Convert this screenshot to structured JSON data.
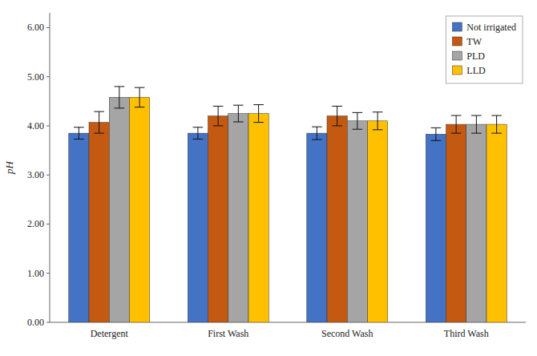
{
  "chart_data": {
    "type": "bar",
    "categories": [
      "Detergent",
      "First Wash",
      "Second Wash",
      "Third Wash"
    ],
    "ylabel": "pH",
    "series": [
      {
        "name": "Not irrigated",
        "color": "#4472C4",
        "values": [
          3.85,
          3.85,
          3.85,
          3.83
        ],
        "errors": [
          0.12,
          0.12,
          0.13,
          0.13
        ]
      },
      {
        "name": "TW",
        "color": "#C45911",
        "values": [
          4.07,
          4.2,
          4.2,
          4.03
        ],
        "errors": [
          0.22,
          0.2,
          0.2,
          0.18
        ]
      },
      {
        "name": "PLD",
        "color": "#A5A5A5",
        "values": [
          4.58,
          4.25,
          4.1,
          4.03
        ],
        "errors": [
          0.22,
          0.17,
          0.17,
          0.18
        ]
      },
      {
        "name": "LLD",
        "color": "#FFC000",
        "values": [
          4.58,
          4.25,
          4.1,
          4.03
        ],
        "errors": [
          0.2,
          0.18,
          0.18,
          0.18
        ]
      }
    ],
    "ylim": [
      0.0,
      6.3
    ],
    "yticks": [
      {
        "value": 0.0,
        "label": "0.00"
      },
      {
        "value": 1.0,
        "label": "1.00"
      },
      {
        "value": 2.0,
        "label": "2.00"
      },
      {
        "value": 3.0,
        "label": "3.00"
      },
      {
        "value": 4.0,
        "label": "4.00"
      },
      {
        "value": 5.0,
        "label": "5.00"
      },
      {
        "value": 6.0,
        "label": "6.00"
      }
    ],
    "grid": false,
    "legend": "upper right"
  }
}
